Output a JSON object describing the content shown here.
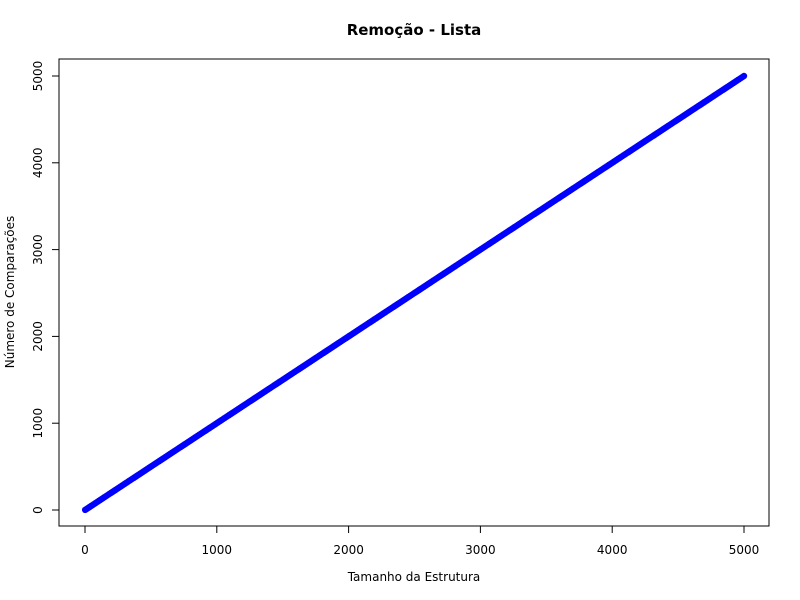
{
  "chart_data": {
    "type": "scatter",
    "title": "Remoção - Lista",
    "xlabel": "Tamanho da Estrutura",
    "ylabel": "Número de Comparações",
    "xlim": [
      0,
      5000
    ],
    "ylim": [
      0,
      5000
    ],
    "xticks": [
      "0",
      "1000",
      "2000",
      "3000",
      "4000",
      "5000"
    ],
    "yticks": [
      "0",
      "1000",
      "2000",
      "3000",
      "4000",
      "5000"
    ],
    "grid": false,
    "legend": "none",
    "point_color": "#0000ff",
    "series": [
      {
        "x_start": 1,
        "x_end": 5000,
        "x_step": 10,
        "relation": "y = x"
      }
    ]
  }
}
